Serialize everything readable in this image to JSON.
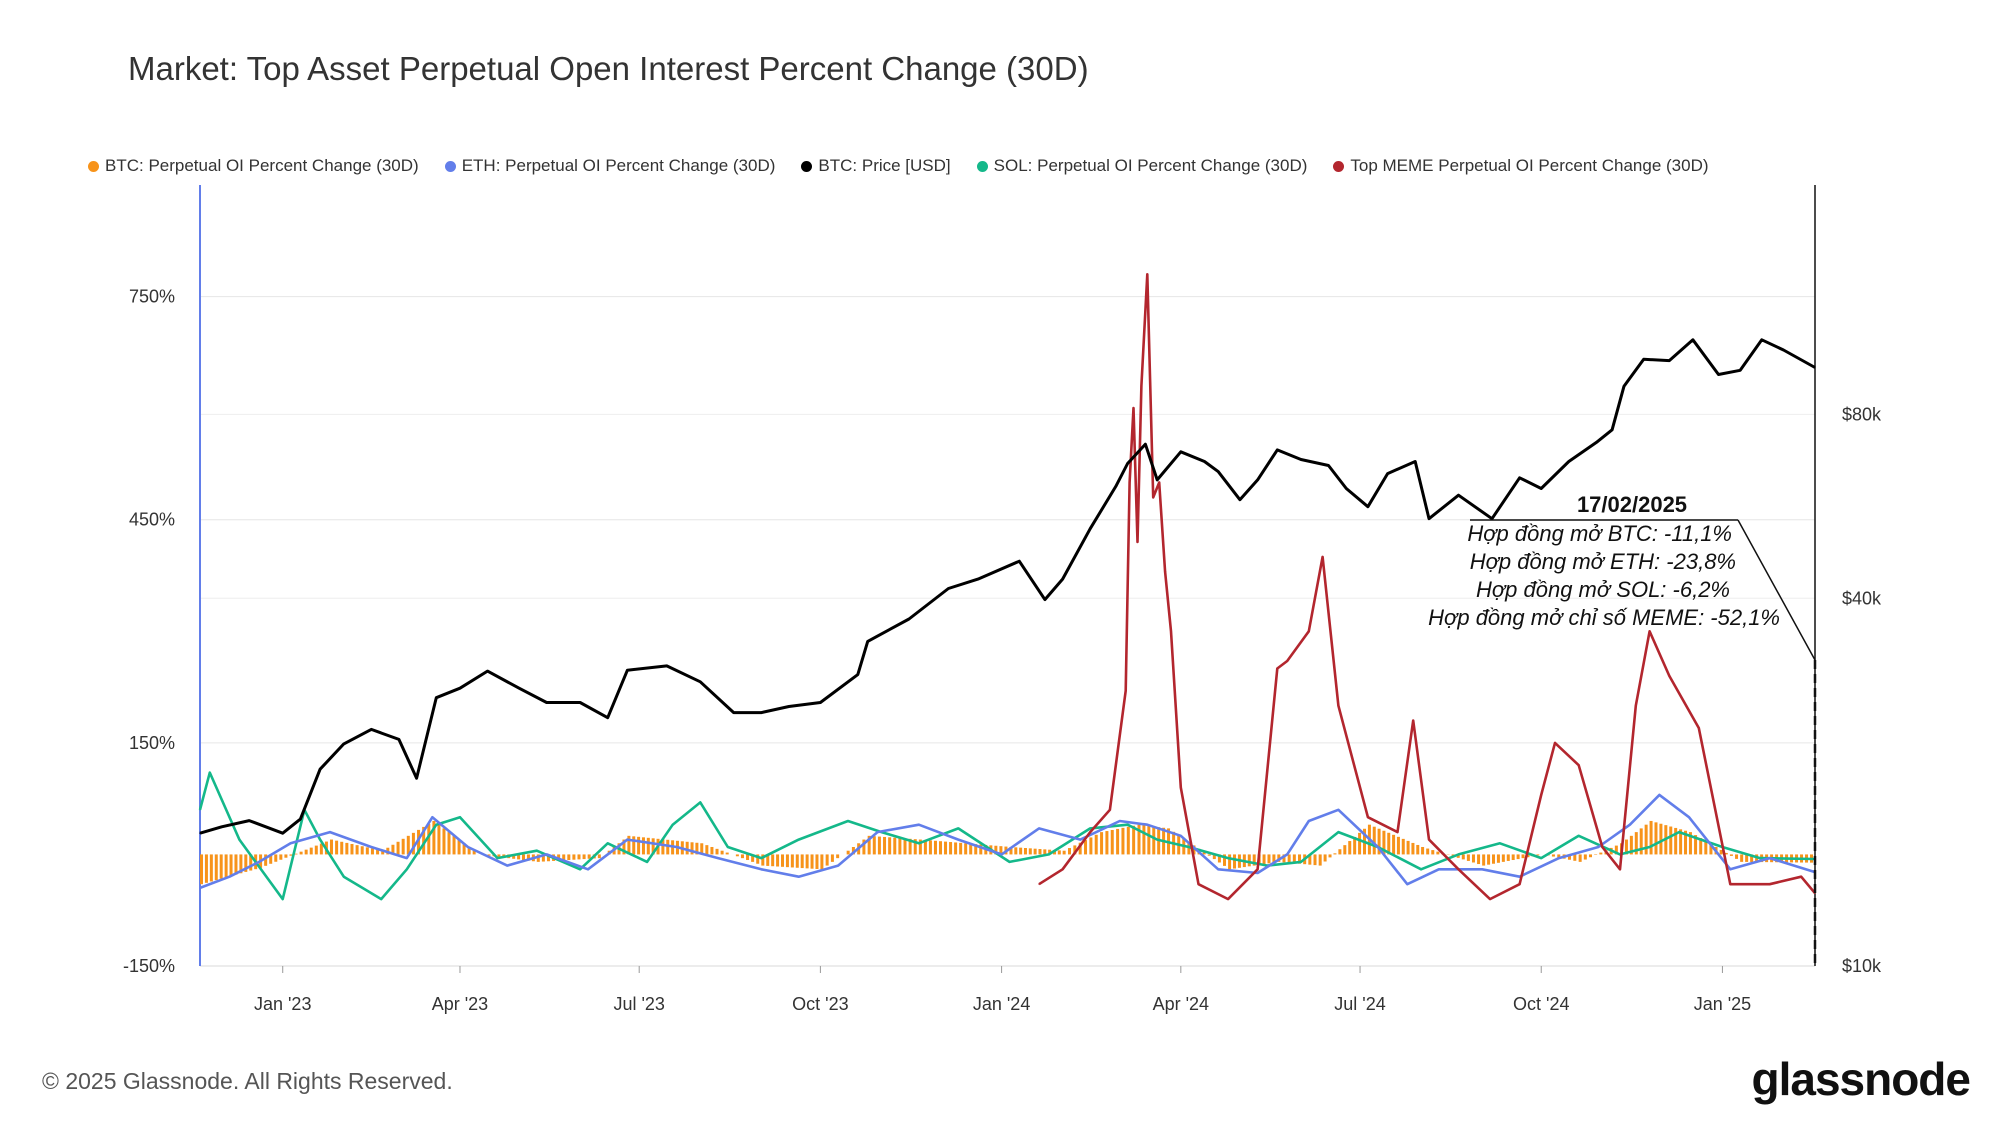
{
  "title": "Market: Top Asset Perpetual Open Interest Percent Change (30D)",
  "legend": [
    {
      "label": "BTC: Perpetual OI Percent Change (30D)",
      "color": "#f7931a"
    },
    {
      "label": "ETH: Perpetual OI Percent Change (30D)",
      "color": "#627eea"
    },
    {
      "label": "BTC: Price [USD]",
      "color": "#000000"
    },
    {
      "label": "SOL: Perpetual OI Percent Change (30D)",
      "color": "#14b88a"
    },
    {
      "label": "Top MEME Perpetual OI Percent Change (30D)",
      "color": "#b3262e"
    }
  ],
  "annotation": {
    "date": "17/02/2025",
    "lines": [
      "Hợp đồng mở BTC: -11,1%",
      "Hợp đồng mở ETH: -23,8%",
      "Hợp đồng mở SOL: -6,2%",
      "Hợp đồng mở chỉ số MEME: -52,1%"
    ]
  },
  "footer": {
    "copyright": "© 2025 Glassnode. All Rights Reserved.",
    "brand": "glassnode"
  },
  "chart_data": {
    "type": "line",
    "x_start": "2022-11-20",
    "x_end": "2025-02-17",
    "x_tick_labels": [
      "Jan '23",
      "Apr '23",
      "Jul '23",
      "Oct '23",
      "Jan '24",
      "Apr '24",
      "Jul '24",
      "Oct '24",
      "Jan '25"
    ],
    "x_ticks": [
      "2023-01-01",
      "2023-04-01",
      "2023-07-01",
      "2023-10-01",
      "2024-01-01",
      "2024-04-01",
      "2024-07-01",
      "2024-10-01",
      "2025-01-01"
    ],
    "y_left": {
      "min": -150,
      "max": 900,
      "ticks": [
        -150,
        150,
        450,
        750
      ],
      "tick_labels": [
        "-150%",
        "150%",
        "450%",
        "750%"
      ]
    },
    "y_right": {
      "scale": "log",
      "min": 10000,
      "max": 190000,
      "ticks": [
        10000,
        40000,
        80000
      ],
      "tick_labels": [
        "$10k",
        "$40k",
        "$80k"
      ]
    },
    "series": [
      {
        "name": "BTC: Price [USD]",
        "color": "#000000",
        "axis": "right",
        "x": [
          "2022-11-20",
          "2022-12-01",
          "2022-12-15",
          "2023-01-01",
          "2023-01-10",
          "2023-01-20",
          "2023-02-01",
          "2023-02-15",
          "2023-03-01",
          "2023-03-10",
          "2023-03-20",
          "2023-04-01",
          "2023-04-15",
          "2023-05-01",
          "2023-05-15",
          "2023-06-01",
          "2023-06-15",
          "2023-06-25",
          "2023-07-15",
          "2023-08-01",
          "2023-08-18",
          "2023-09-01",
          "2023-09-15",
          "2023-10-01",
          "2023-10-20",
          "2023-10-25",
          "2023-11-15",
          "2023-12-05",
          "2023-12-20",
          "2024-01-10",
          "2024-01-23",
          "2024-02-01",
          "2024-02-15",
          "2024-02-28",
          "2024-03-05",
          "2024-03-14",
          "2024-03-20",
          "2024-04-01",
          "2024-04-13",
          "2024-04-20",
          "2024-05-01",
          "2024-05-10",
          "2024-05-20",
          "2024-06-01",
          "2024-06-15",
          "2024-06-24",
          "2024-07-05",
          "2024-07-15",
          "2024-07-29",
          "2024-08-05",
          "2024-08-20",
          "2024-09-06",
          "2024-09-20",
          "2024-10-01",
          "2024-10-15",
          "2024-10-29",
          "2024-11-06",
          "2024-11-12",
          "2024-11-22",
          "2024-12-05",
          "2024-12-17",
          "2024-12-30",
          "2025-01-10",
          "2025-01-21",
          "2025-02-01",
          "2025-02-17"
        ],
        "values": [
          16500,
          16900,
          17300,
          16500,
          17400,
          21000,
          23100,
          24400,
          23500,
          20300,
          27500,
          28500,
          30400,
          28500,
          27000,
          27000,
          25500,
          30500,
          31000,
          29200,
          26000,
          26000,
          26600,
          27000,
          30000,
          34000,
          37000,
          41500,
          43000,
          46000,
          39800,
          43000,
          52000,
          61000,
          66500,
          71500,
          62500,
          69500,
          67000,
          64500,
          58000,
          62500,
          70000,
          67500,
          66000,
          60500,
          56500,
          64000,
          67000,
          54000,
          59000,
          54000,
          63000,
          60500,
          67000,
          72000,
          75500,
          89000,
          98500,
          98000,
          106000,
          93000,
          94500,
          106000,
          102000,
          95500
        ]
      },
      {
        "name": "BTC: Perpetual OI Percent Change (30D)",
        "color": "#f7931a",
        "axis": "left",
        "style": "bars",
        "x": [
          "2022-11-20",
          "2022-12-20",
          "2023-01-25",
          "2023-02-20",
          "2023-03-18",
          "2023-04-10",
          "2023-05-10",
          "2023-06-10",
          "2023-06-25",
          "2023-08-01",
          "2023-09-01",
          "2023-10-01",
          "2023-10-25",
          "2023-11-20",
          "2024-01-05",
          "2024-02-01",
          "2024-02-20",
          "2024-03-10",
          "2024-03-25",
          "2024-04-25",
          "2024-05-20",
          "2024-06-10",
          "2024-07-05",
          "2024-08-01",
          "2024-09-01",
          "2024-10-01",
          "2024-10-20",
          "2024-11-10",
          "2024-11-25",
          "2024-12-15",
          "2025-01-10",
          "2025-02-17"
        ],
        "values": [
          -40,
          -18,
          20,
          5,
          45,
          0,
          -10,
          -5,
          25,
          15,
          -15,
          -20,
          25,
          20,
          10,
          5,
          30,
          40,
          35,
          -20,
          -10,
          -15,
          40,
          10,
          -15,
          0,
          -10,
          15,
          45,
          30,
          -10,
          -11.1
        ]
      },
      {
        "name": "ETH: Perpetual OI Percent Change (30D)",
        "color": "#627eea",
        "axis": "left",
        "x": [
          "2022-11-20",
          "2022-12-05",
          "2022-12-20",
          "2023-01-05",
          "2023-01-25",
          "2023-02-15",
          "2023-03-05",
          "2023-03-18",
          "2023-04-05",
          "2023-04-25",
          "2023-05-15",
          "2023-06-05",
          "2023-06-25",
          "2023-07-20",
          "2023-08-10",
          "2023-09-01",
          "2023-09-20",
          "2023-10-10",
          "2023-10-30",
          "2023-11-20",
          "2023-12-10",
          "2024-01-01",
          "2024-01-20",
          "2024-02-10",
          "2024-03-01",
          "2024-03-15",
          "2024-04-01",
          "2024-04-20",
          "2024-05-10",
          "2024-05-25",
          "2024-06-05",
          "2024-06-20",
          "2024-07-10",
          "2024-07-25",
          "2024-08-10",
          "2024-09-01",
          "2024-09-20",
          "2024-10-10",
          "2024-10-30",
          "2024-11-15",
          "2024-11-30",
          "2024-12-15",
          "2025-01-05",
          "2025-01-25",
          "2025-02-17"
        ],
        "values": [
          -45,
          -30,
          -10,
          15,
          30,
          10,
          -5,
          50,
          10,
          -15,
          0,
          -20,
          20,
          10,
          -5,
          -20,
          -30,
          -15,
          30,
          40,
          20,
          0,
          35,
          20,
          45,
          40,
          25,
          -20,
          -25,
          0,
          45,
          60,
          10,
          -40,
          -20,
          -20,
          -30,
          -5,
          10,
          40,
          80,
          50,
          -20,
          -5,
          -23.8
        ]
      },
      {
        "name": "SOL: Perpetual OI Percent Change (30D)",
        "color": "#14b88a",
        "axis": "left",
        "x": [
          "2022-11-20",
          "2022-11-25",
          "2022-12-10",
          "2023-01-01",
          "2023-01-12",
          "2023-01-20",
          "2023-02-01",
          "2023-02-20",
          "2023-03-05",
          "2023-03-20",
          "2023-04-01",
          "2023-04-20",
          "2023-05-10",
          "2023-06-01",
          "2023-06-15",
          "2023-07-05",
          "2023-07-18",
          "2023-08-01",
          "2023-08-15",
          "2023-09-01",
          "2023-09-20",
          "2023-10-15",
          "2023-11-01",
          "2023-11-20",
          "2023-12-10",
          "2024-01-05",
          "2024-01-25",
          "2024-02-15",
          "2024-03-05",
          "2024-03-20",
          "2024-04-05",
          "2024-04-25",
          "2024-05-15",
          "2024-06-01",
          "2024-06-20",
          "2024-07-10",
          "2024-08-01",
          "2024-08-20",
          "2024-09-10",
          "2024-10-01",
          "2024-10-20",
          "2024-11-10",
          "2024-11-25",
          "2024-12-10",
          "2025-01-01",
          "2025-01-20",
          "2025-02-17"
        ],
        "values": [
          60,
          110,
          20,
          -60,
          60,
          20,
          -30,
          -60,
          -20,
          40,
          50,
          -5,
          5,
          -20,
          15,
          -10,
          40,
          70,
          10,
          -5,
          20,
          45,
          30,
          15,
          35,
          -10,
          0,
          35,
          40,
          20,
          10,
          -5,
          -15,
          -10,
          30,
          10,
          -20,
          0,
          15,
          -5,
          25,
          0,
          10,
          30,
          10,
          -5,
          -6.2
        ]
      },
      {
        "name": "Top MEME Perpetual OI Percent Change (30D)",
        "color": "#b3262e",
        "axis": "left",
        "x": [
          "2024-01-20",
          "2024-02-01",
          "2024-02-15",
          "2024-02-25",
          "2024-03-04",
          "2024-03-06",
          "2024-03-08",
          "2024-03-10",
          "2024-03-12",
          "2024-03-15",
          "2024-03-18",
          "2024-03-21",
          "2024-03-24",
          "2024-03-27",
          "2024-04-01",
          "2024-04-10",
          "2024-04-25",
          "2024-05-10",
          "2024-05-20",
          "2024-05-25",
          "2024-06-05",
          "2024-06-12",
          "2024-06-20",
          "2024-07-05",
          "2024-07-20",
          "2024-07-28",
          "2024-08-05",
          "2024-08-20",
          "2024-09-05",
          "2024-09-20",
          "2024-10-01",
          "2024-10-08",
          "2024-10-20",
          "2024-11-01",
          "2024-11-10",
          "2024-11-18",
          "2024-11-25",
          "2024-12-05",
          "2024-12-20",
          "2025-01-05",
          "2025-01-25",
          "2025-02-10",
          "2025-02-17"
        ],
        "values": [
          -40,
          -20,
          30,
          60,
          220,
          500,
          600,
          420,
          630,
          780,
          480,
          500,
          380,
          300,
          90,
          -40,
          -60,
          -20,
          250,
          260,
          300,
          400,
          200,
          50,
          30,
          180,
          20,
          -20,
          -60,
          -40,
          80,
          150,
          120,
          10,
          -20,
          200,
          300,
          240,
          170,
          -40,
          -40,
          -30,
          -52.1
        ]
      }
    ]
  }
}
